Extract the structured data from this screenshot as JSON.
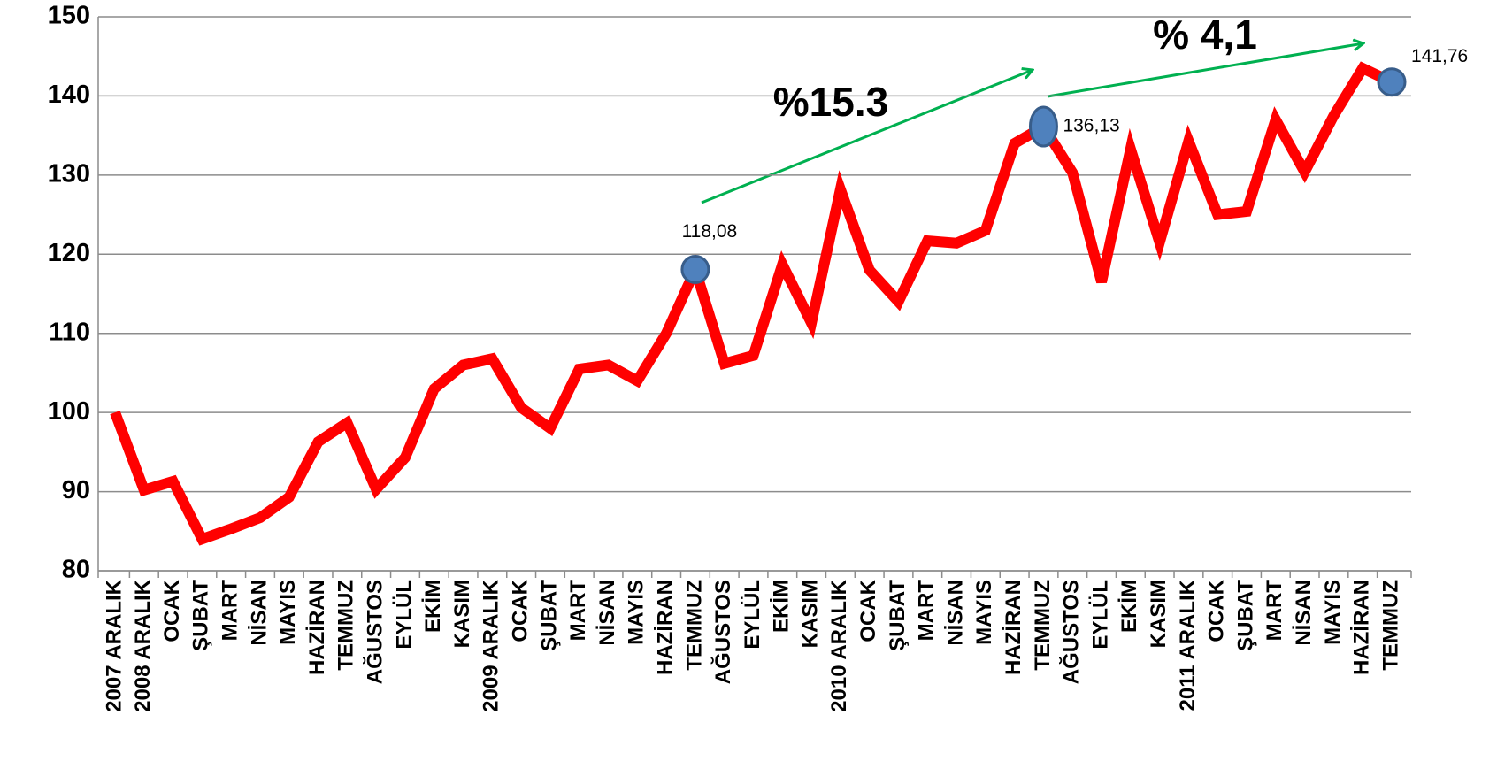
{
  "chart_data": {
    "type": "line",
    "categories": [
      "2007 ARALIK",
      "2008 ARALIK",
      "OCAK",
      "ŞUBAT",
      "MART",
      "NİSAN",
      "MAYIS",
      "HAZİRAN",
      "TEMMUZ",
      "AĞUSTOS",
      "EYLÜL",
      "EKİM",
      "KASIM",
      "2009 ARALIK",
      "OCAK",
      "ŞUBAT",
      "MART",
      "NİSAN",
      "MAYIS",
      "HAZİRAN",
      "TEMMUZ",
      "AĞUSTOS",
      "EYLÜL",
      "EKİM",
      "KASIM",
      "2010 ARALIK",
      "OCAK",
      "ŞUBAT",
      "MART",
      "NİSAN",
      "MAYIS",
      "HAZİRAN",
      "TEMMUZ",
      "AĞUSTOS",
      "EYLÜL",
      "EKİM",
      "KASIM",
      "2011 ARALIK",
      "OCAK",
      "ŞUBAT",
      "MART",
      "NİSAN",
      "MAYIS",
      "HAZİRAN",
      "TEMMUZ"
    ],
    "values": [
      100,
      90.2,
      91.3,
      84,
      85.3,
      86.7,
      89.3,
      96.3,
      98.7,
      90.3,
      94.3,
      103,
      106,
      106.8,
      100.6,
      98,
      105.5,
      106,
      104,
      110,
      118.08,
      106.2,
      107.2,
      118.7,
      111.3,
      128.2,
      118,
      114,
      121.7,
      121.4,
      123,
      134,
      136.13,
      130.3,
      116.5,
      133.3,
      121.5,
      134.3,
      125,
      125.4,
      137,
      130.4,
      137.5,
      143.5,
      141.76
    ],
    "value_labels": [
      null,
      null,
      null,
      null,
      null,
      null,
      null,
      null,
      null,
      null,
      null,
      null,
      null,
      null,
      null,
      null,
      null,
      null,
      null,
      null,
      "118,08",
      null,
      null,
      null,
      null,
      null,
      null,
      null,
      null,
      null,
      null,
      null,
      "136,13",
      null,
      null,
      null,
      null,
      null,
      null,
      null,
      null,
      null,
      null,
      null,
      "141,76"
    ],
    "color": "#ff0000",
    "marker_color": "#4f81bd",
    "ylim": [
      80,
      150
    ],
    "yticks": [
      80,
      90,
      100,
      110,
      120,
      130,
      140,
      150
    ],
    "grid": true,
    "annotations": [
      "%15.3",
      "% 4,1"
    ]
  }
}
